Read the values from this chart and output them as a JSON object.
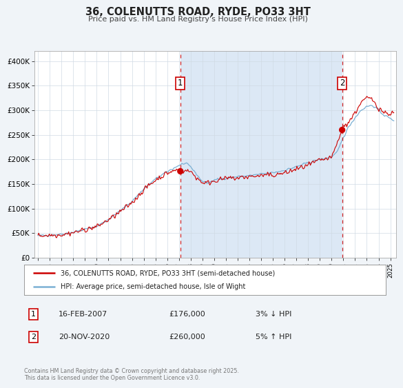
{
  "title": "36, COLENUTTS ROAD, RYDE, PO33 3HT",
  "subtitle": "Price paid vs. HM Land Registry's House Price Index (HPI)",
  "background_color": "#f0f4f8",
  "plot_bg_color": "#ffffff",
  "shade_color": "#dce8f5",
  "xlim_start": 1994.7,
  "xlim_end": 2025.5,
  "ylim_min": 0,
  "ylim_max": 420000,
  "yticks": [
    0,
    50000,
    100000,
    150000,
    200000,
    250000,
    300000,
    350000,
    400000
  ],
  "ytick_labels": [
    "£0",
    "£50K",
    "£100K",
    "£150K",
    "£200K",
    "£250K",
    "£300K",
    "£350K",
    "£400K"
  ],
  "sale1_x": 2007.12,
  "sale1_y": 176000,
  "sale2_x": 2020.9,
  "sale2_y": 260000,
  "sale1_date": "16-FEB-2007",
  "sale1_price": "£176,000",
  "sale1_hpi": "3% ↓ HPI",
  "sale2_date": "20-NOV-2020",
  "sale2_price": "£260,000",
  "sale2_hpi": "5% ↑ HPI",
  "legend_label_red": "36, COLENUTTS ROAD, RYDE, PO33 3HT (semi-detached house)",
  "legend_label_blue": "HPI: Average price, semi-detached house, Isle of Wight",
  "footnote": "Contains HM Land Registry data © Crown copyright and database right 2025.\nThis data is licensed under the Open Government Licence v3.0.",
  "red_color": "#cc0000",
  "blue_color": "#7ab0d4",
  "dot_color": "#cc0000",
  "vline_color": "#cc0000",
  "marker_box_color": "#cc0000",
  "grid_color": "#d0dae4",
  "spine_color": "#aaaaaa"
}
